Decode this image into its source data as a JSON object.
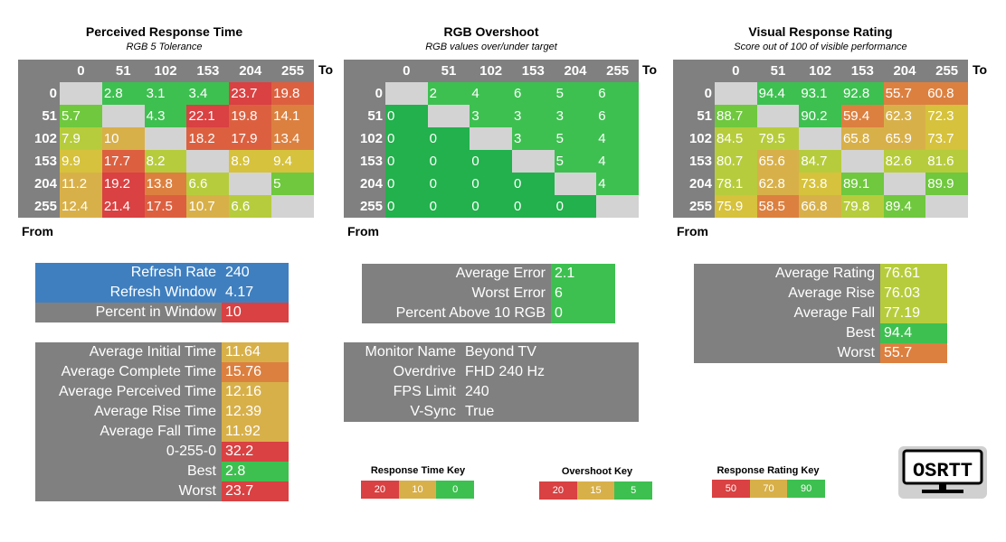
{
  "colors": {
    "header_gray": "#808080",
    "diag_gray": "#d3d3d3",
    "blue": "#3f7fbf",
    "green_dark": "#22b14c",
    "green": "#3dc050",
    "green_light": "#6fc83e",
    "yellow_green": "#b7cc3c",
    "yellow": "#d6c23c",
    "gold": "#d8b04a",
    "orange": "#dc8040",
    "red_orange": "#dc6040",
    "red": "#d94142"
  },
  "panels": [
    {
      "title": "Perceived Response Time",
      "subtitle": "RGB 5 Tolerance",
      "to_label": "To",
      "from_label": "From",
      "columns": [
        "0",
        "51",
        "102",
        "153",
        "204",
        "255"
      ],
      "rows": [
        {
          "label": "0",
          "cells": [
            {
              "v": "",
              "c": "diag"
            },
            {
              "v": "2.8",
              "c": "green"
            },
            {
              "v": "3.1",
              "c": "green"
            },
            {
              "v": "3.4",
              "c": "green"
            },
            {
              "v": "23.7",
              "c": "red"
            },
            {
              "v": "19.8",
              "c": "red_orange"
            }
          ]
        },
        {
          "label": "51",
          "cells": [
            {
              "v": "5.7",
              "c": "green_light"
            },
            {
              "v": "",
              "c": "diag"
            },
            {
              "v": "4.3",
              "c": "green"
            },
            {
              "v": "22.1",
              "c": "red"
            },
            {
              "v": "19.8",
              "c": "red_orange"
            },
            {
              "v": "14.1",
              "c": "orange"
            }
          ]
        },
        {
          "label": "102",
          "cells": [
            {
              "v": "7.9",
              "c": "yellow_green"
            },
            {
              "v": "10",
              "c": "gold"
            },
            {
              "v": "",
              "c": "diag"
            },
            {
              "v": "18.2",
              "c": "red_orange"
            },
            {
              "v": "17.9",
              "c": "red_orange"
            },
            {
              "v": "13.4",
              "c": "orange"
            }
          ]
        },
        {
          "label": "153",
          "cells": [
            {
              "v": "9.9",
              "c": "yellow"
            },
            {
              "v": "17.7",
              "c": "red_orange"
            },
            {
              "v": "8.2",
              "c": "yellow_green"
            },
            {
              "v": "",
              "c": "diag"
            },
            {
              "v": "8.9",
              "c": "yellow"
            },
            {
              "v": "9.4",
              "c": "yellow"
            }
          ]
        },
        {
          "label": "204",
          "cells": [
            {
              "v": "11.2",
              "c": "gold"
            },
            {
              "v": "19.2",
              "c": "red"
            },
            {
              "v": "13.8",
              "c": "orange"
            },
            {
              "v": "6.6",
              "c": "yellow_green"
            },
            {
              "v": "",
              "c": "diag"
            },
            {
              "v": "5",
              "c": "green_light"
            }
          ]
        },
        {
          "label": "255",
          "cells": [
            {
              "v": "12.4",
              "c": "gold"
            },
            {
              "v": "21.4",
              "c": "red"
            },
            {
              "v": "17.5",
              "c": "red_orange"
            },
            {
              "v": "10.7",
              "c": "gold"
            },
            {
              "v": "6.6",
              "c": "yellow_green"
            },
            {
              "v": "",
              "c": "diag"
            }
          ]
        }
      ]
    },
    {
      "title": "RGB Overshoot",
      "subtitle": "RGB values over/under target",
      "to_label": "To",
      "from_label": "From",
      "columns": [
        "0",
        "51",
        "102",
        "153",
        "204",
        "255"
      ],
      "rows": [
        {
          "label": "0",
          "cells": [
            {
              "v": "",
              "c": "diag"
            },
            {
              "v": "2",
              "c": "green"
            },
            {
              "v": "4",
              "c": "green"
            },
            {
              "v": "6",
              "c": "green"
            },
            {
              "v": "5",
              "c": "green"
            },
            {
              "v": "6",
              "c": "green"
            }
          ]
        },
        {
          "label": "51",
          "cells": [
            {
              "v": "0",
              "c": "green_dark"
            },
            {
              "v": "",
              "c": "diag"
            },
            {
              "v": "3",
              "c": "green"
            },
            {
              "v": "3",
              "c": "green"
            },
            {
              "v": "3",
              "c": "green"
            },
            {
              "v": "6",
              "c": "green"
            }
          ]
        },
        {
          "label": "102",
          "cells": [
            {
              "v": "0",
              "c": "green_dark"
            },
            {
              "v": "0",
              "c": "green_dark"
            },
            {
              "v": "",
              "c": "diag"
            },
            {
              "v": "3",
              "c": "green"
            },
            {
              "v": "5",
              "c": "green"
            },
            {
              "v": "4",
              "c": "green"
            }
          ]
        },
        {
          "label": "153",
          "cells": [
            {
              "v": "0",
              "c": "green_dark"
            },
            {
              "v": "0",
              "c": "green_dark"
            },
            {
              "v": "0",
              "c": "green_dark"
            },
            {
              "v": "",
              "c": "diag"
            },
            {
              "v": "5",
              "c": "green"
            },
            {
              "v": "4",
              "c": "green"
            }
          ]
        },
        {
          "label": "204",
          "cells": [
            {
              "v": "0",
              "c": "green_dark"
            },
            {
              "v": "0",
              "c": "green_dark"
            },
            {
              "v": "0",
              "c": "green_dark"
            },
            {
              "v": "0",
              "c": "green_dark"
            },
            {
              "v": "",
              "c": "diag"
            },
            {
              "v": "4",
              "c": "green"
            }
          ]
        },
        {
          "label": "255",
          "cells": [
            {
              "v": "0",
              "c": "green_dark"
            },
            {
              "v": "0",
              "c": "green_dark"
            },
            {
              "v": "0",
              "c": "green_dark"
            },
            {
              "v": "0",
              "c": "green_dark"
            },
            {
              "v": "0",
              "c": "green_dark"
            },
            {
              "v": "",
              "c": "diag"
            }
          ]
        }
      ]
    },
    {
      "title": "Visual Response Rating",
      "subtitle": "Score out of 100 of visible performance",
      "to_label": "To",
      "from_label": "From",
      "columns": [
        "0",
        "51",
        "102",
        "153",
        "204",
        "255"
      ],
      "rows": [
        {
          "label": "0",
          "cells": [
            {
              "v": "",
              "c": "diag"
            },
            {
              "v": "94.4",
              "c": "green"
            },
            {
              "v": "93.1",
              "c": "green"
            },
            {
              "v": "92.8",
              "c": "green"
            },
            {
              "v": "55.7",
              "c": "orange"
            },
            {
              "v": "60.8",
              "c": "orange"
            }
          ]
        },
        {
          "label": "51",
          "cells": [
            {
              "v": "88.7",
              "c": "green_light"
            },
            {
              "v": "",
              "c": "diag"
            },
            {
              "v": "90.2",
              "c": "green"
            },
            {
              "v": "59.4",
              "c": "orange"
            },
            {
              "v": "62.3",
              "c": "gold"
            },
            {
              "v": "72.3",
              "c": "yellow"
            }
          ]
        },
        {
          "label": "102",
          "cells": [
            {
              "v": "84.5",
              "c": "yellow_green"
            },
            {
              "v": "79.5",
              "c": "yellow_green"
            },
            {
              "v": "",
              "c": "diag"
            },
            {
              "v": "65.8",
              "c": "gold"
            },
            {
              "v": "65.9",
              "c": "gold"
            },
            {
              "v": "73.7",
              "c": "yellow"
            }
          ]
        },
        {
          "label": "153",
          "cells": [
            {
              "v": "80.7",
              "c": "yellow_green"
            },
            {
              "v": "65.6",
              "c": "gold"
            },
            {
              "v": "84.7",
              "c": "yellow_green"
            },
            {
              "v": "",
              "c": "diag"
            },
            {
              "v": "82.6",
              "c": "yellow_green"
            },
            {
              "v": "81.6",
              "c": "yellow_green"
            }
          ]
        },
        {
          "label": "204",
          "cells": [
            {
              "v": "78.1",
              "c": "yellow_green"
            },
            {
              "v": "62.8",
              "c": "gold"
            },
            {
              "v": "73.8",
              "c": "yellow"
            },
            {
              "v": "89.1",
              "c": "green_light"
            },
            {
              "v": "",
              "c": "diag"
            },
            {
              "v": "89.9",
              "c": "green_light"
            }
          ]
        },
        {
          "label": "255",
          "cells": [
            {
              "v": "75.9",
              "c": "yellow"
            },
            {
              "v": "58.5",
              "c": "orange"
            },
            {
              "v": "66.8",
              "c": "gold"
            },
            {
              "v": "79.8",
              "c": "yellow_green"
            },
            {
              "v": "89.4",
              "c": "green_light"
            },
            {
              "v": "",
              "c": "diag"
            }
          ]
        }
      ]
    }
  ],
  "refresh_stats": [
    {
      "label": "Refresh Rate",
      "value": "240",
      "lc": "blue",
      "vc": "blue"
    },
    {
      "label": "Refresh Window",
      "value": "4.17",
      "lc": "blue",
      "vc": "blue"
    },
    {
      "label": "Percent in Window",
      "value": "10",
      "lc": "header_gray",
      "vc": "red"
    }
  ],
  "time_stats": [
    {
      "label": "Average Initial Time",
      "value": "11.64",
      "vc": "gold"
    },
    {
      "label": "Average Complete Time",
      "value": "15.76",
      "vc": "orange"
    },
    {
      "label": "Average Perceived Time",
      "value": "12.16",
      "vc": "gold"
    },
    {
      "label": "Average Rise Time",
      "value": "12.39",
      "vc": "gold"
    },
    {
      "label": "Average Fall Time",
      "value": "11.92",
      "vc": "gold"
    },
    {
      "label": "0-255-0",
      "value": "32.2",
      "vc": "red"
    },
    {
      "label": "Best",
      "value": "2.8",
      "vc": "green"
    },
    {
      "label": "Worst",
      "value": "23.7",
      "vc": "red"
    }
  ],
  "overshoot_stats": [
    {
      "label": "Average Error",
      "value": "2.1",
      "vc": "green"
    },
    {
      "label": "Worst Error",
      "value": "6",
      "vc": "green"
    },
    {
      "label": "Percent Above 10 RGB",
      "value": "0",
      "vc": "green"
    }
  ],
  "monitor_info": [
    {
      "label": "Monitor Name",
      "value": "Beyond TV"
    },
    {
      "label": "Overdrive",
      "value": "FHD 240 Hz"
    },
    {
      "label": "FPS Limit",
      "value": "240"
    },
    {
      "label": "V-Sync",
      "value": "True"
    }
  ],
  "rating_stats": [
    {
      "label": "Average Rating",
      "value": "76.61",
      "vc": "yellow_green"
    },
    {
      "label": "Average Rise",
      "value": "76.03",
      "vc": "yellow_green"
    },
    {
      "label": "Average Fall",
      "value": "77.19",
      "vc": "yellow_green"
    },
    {
      "label": "Best",
      "value": "94.4",
      "vc": "green"
    },
    {
      "label": "Worst",
      "value": "55.7",
      "vc": "orange"
    }
  ],
  "keys": [
    {
      "title": "Response Time Key",
      "items": [
        {
          "v": "20",
          "c": "red"
        },
        {
          "v": "10",
          "c": "gold"
        },
        {
          "v": "0",
          "c": "green"
        }
      ]
    },
    {
      "title": "Overshoot Key",
      "items": [
        {
          "v": "20",
          "c": "red"
        },
        {
          "v": "15",
          "c": "gold"
        },
        {
          "v": "5",
          "c": "green"
        }
      ]
    },
    {
      "title": "Response Rating Key",
      "items": [
        {
          "v": "50",
          "c": "red"
        },
        {
          "v": "70",
          "c": "gold"
        },
        {
          "v": "90",
          "c": "green"
        }
      ]
    }
  ],
  "logo": {
    "text": "OSRTT"
  }
}
